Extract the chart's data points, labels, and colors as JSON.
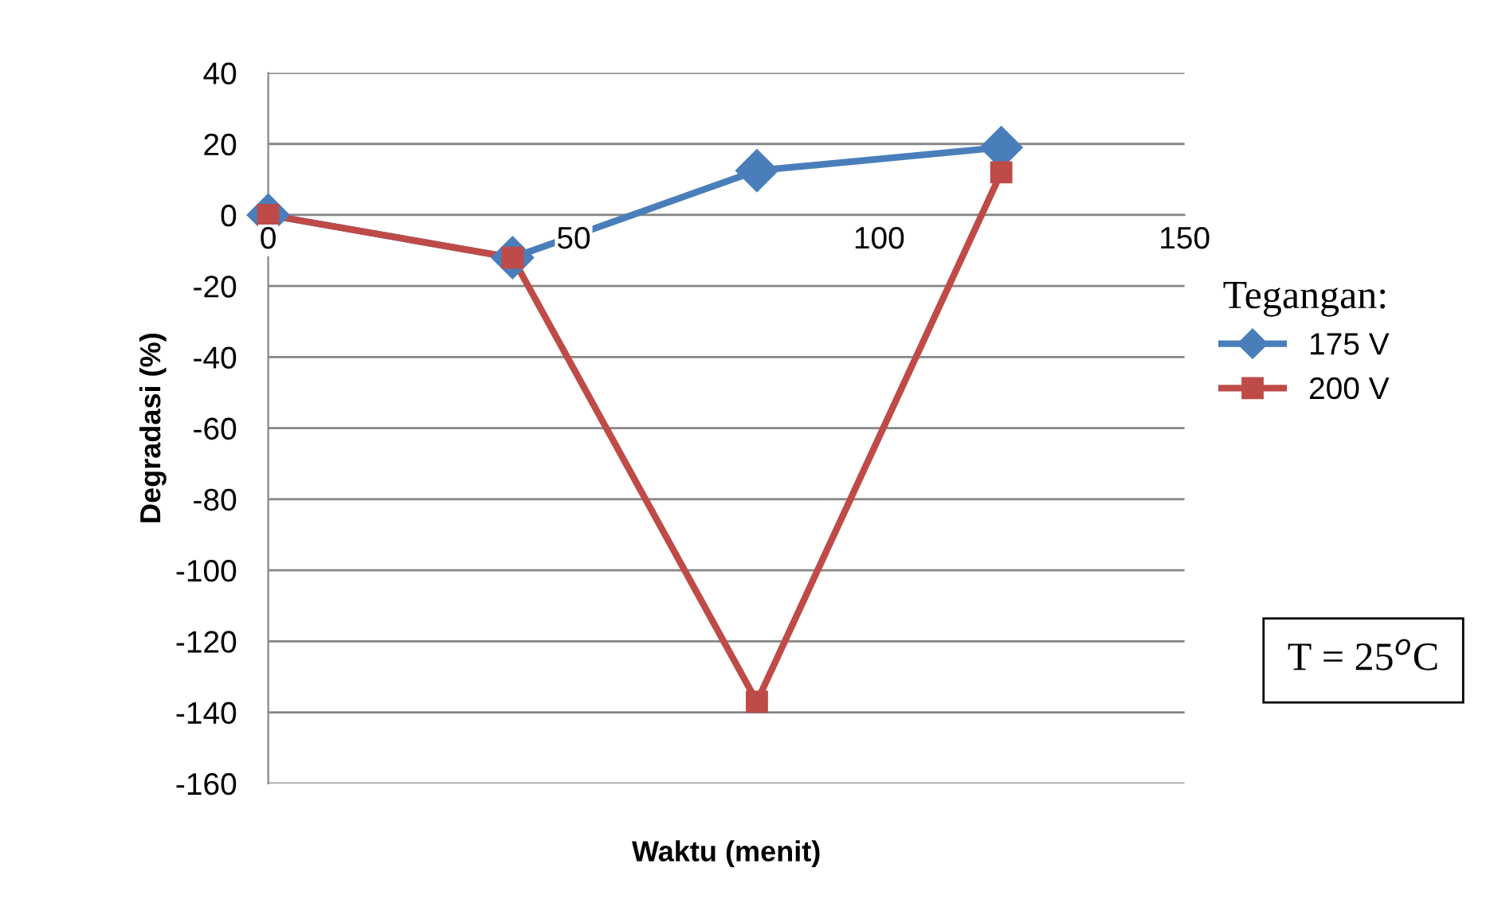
{
  "chart_data": {
    "type": "line",
    "xlabel": "Waktu (menit)",
    "ylabel": "Degradasi (%)",
    "legend_title": "Tegangan:",
    "x": [
      0,
      40,
      80,
      120
    ],
    "series": [
      {
        "name": "175 V",
        "color": "#4a7ebb",
        "marker": "diamond",
        "values": [
          0,
          -12,
          12.5,
          19
        ]
      },
      {
        "name": "200 V",
        "color": "#be4b48",
        "marker": "square",
        "values": [
          0,
          -12,
          -137,
          12
        ]
      }
    ],
    "xlim": [
      0,
      150
    ],
    "xticks": [
      0,
      50,
      100,
      150
    ],
    "ylim": [
      -160,
      40
    ],
    "yticks": [
      -160,
      -140,
      -120,
      -100,
      -80,
      -60,
      -40,
      -20,
      0,
      20,
      40
    ],
    "grid": "y",
    "legend": "right",
    "line_style": "solid",
    "annotations": [
      "T = 25$^{o}$C"
    ]
  }
}
